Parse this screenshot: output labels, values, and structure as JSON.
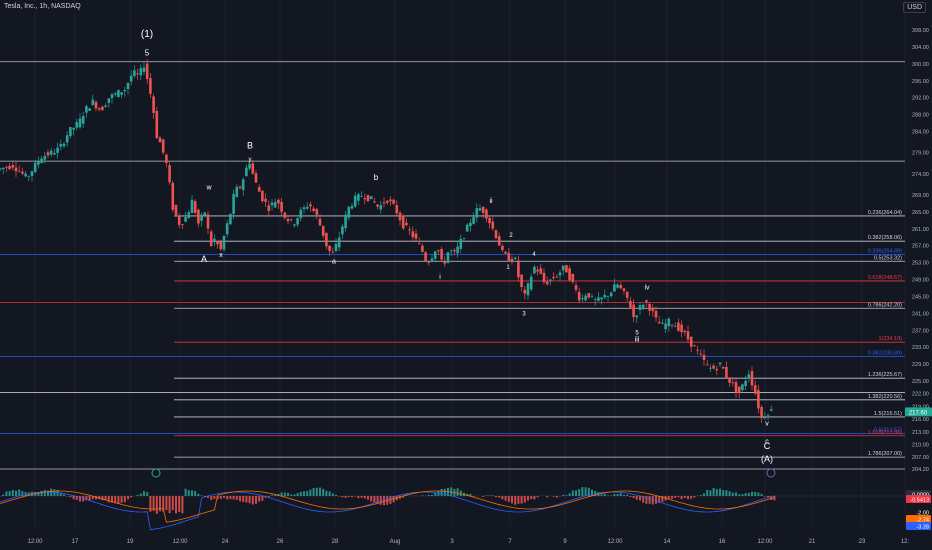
{
  "header": {
    "title": "Tesla, Inc., 1h, NASDAQ",
    "currency": "USD"
  },
  "colors": {
    "background": "#131722",
    "up": "#26a69a",
    "down": "#ef5350",
    "fib_white": "#d1d4dc",
    "fib_blue": "#2962ff",
    "fib_red": "#f23645",
    "macd": "#2962ff",
    "signal": "#ff6d00",
    "price_badge": "#26a69a",
    "current_price_badge": "#22ab94",
    "hist_neg_badge": "#f23645",
    "neg_red_badge": "#f23645"
  },
  "price_axis": {
    "ticks": [
      308.0,
      304.0,
      300.0,
      296.0,
      292.0,
      288.0,
      284.0,
      279.0,
      274.0,
      269.0,
      265.0,
      261.0,
      257.0,
      253.0,
      249.0,
      245.0,
      241.0,
      237.0,
      233.0,
      229.0,
      225.0,
      222.0,
      219.0,
      216.0,
      213.0,
      210.0,
      207.0,
      204.2
    ],
    "current_price": "217.60"
  },
  "time_axis": {
    "labels": [
      "12:00",
      "17",
      "19",
      "12:00",
      "24",
      "26",
      "28",
      "Aug",
      "3",
      "7",
      "9",
      "12:00",
      "14",
      "16",
      "12:00",
      "21",
      "23",
      "12:"
    ]
  },
  "chart_data": {
    "type": "candlestick",
    "symbol": "TSLA",
    "interval": "1h",
    "exchange": "NASDAQ",
    "ylim": [
      202,
      311
    ],
    "path_points": [
      [
        0,
        275
      ],
      [
        16,
        276
      ],
      [
        30,
        273
      ],
      [
        44,
        278
      ],
      [
        55,
        279
      ],
      [
        63,
        280
      ],
      [
        72,
        284
      ],
      [
        82,
        286
      ],
      [
        88,
        289
      ],
      [
        96,
        291
      ],
      [
        104,
        289
      ],
      [
        112,
        292
      ],
      [
        120,
        293
      ],
      [
        128,
        294
      ],
      [
        136,
        298
      ],
      [
        142,
        297
      ],
      [
        147,
        300
      ],
      [
        152,
        295
      ],
      [
        156,
        290
      ],
      [
        160,
        283
      ],
      [
        164,
        281
      ],
      [
        170,
        276
      ],
      [
        176,
        266
      ],
      [
        183,
        262
      ],
      [
        190,
        264
      ],
      [
        196,
        268
      ],
      [
        201,
        262
      ],
      [
        208,
        265
      ],
      [
        214,
        257
      ],
      [
        219,
        259
      ],
      [
        223,
        255
      ],
      [
        228,
        260
      ],
      [
        233,
        264
      ],
      [
        238,
        270
      ],
      [
        244,
        271
      ],
      [
        249,
        275
      ],
      [
        253,
        277
      ],
      [
        257,
        273
      ],
      [
        262,
        270
      ],
      [
        266,
        268
      ],
      [
        272,
        266
      ],
      [
        280,
        268
      ],
      [
        288,
        264
      ],
      [
        296,
        262
      ],
      [
        304,
        265
      ],
      [
        312,
        267
      ],
      [
        320,
        264
      ],
      [
        326,
        260
      ],
      [
        331,
        256
      ],
      [
        336,
        255
      ],
      [
        341,
        258
      ],
      [
        346,
        262
      ],
      [
        352,
        266
      ],
      [
        358,
        268
      ],
      [
        366,
        269
      ],
      [
        374,
        268
      ],
      [
        382,
        266
      ],
      [
        390,
        268
      ],
      [
        398,
        266
      ],
      [
        406,
        262
      ],
      [
        414,
        260
      ],
      [
        420,
        258
      ],
      [
        425,
        256
      ],
      [
        430,
        253
      ],
      [
        434,
        254
      ],
      [
        440,
        257
      ],
      [
        446,
        252
      ],
      [
        452,
        256
      ],
      [
        458,
        255
      ],
      [
        464,
        258
      ],
      [
        470,
        261
      ],
      [
        476,
        264
      ],
      [
        482,
        266
      ],
      [
        488,
        265
      ],
      [
        494,
        262
      ],
      [
        500,
        259
      ],
      [
        506,
        255
      ],
      [
        512,
        254
      ],
      [
        518,
        254
      ],
      [
        523,
        248
      ],
      [
        528,
        245
      ],
      [
        532,
        248
      ],
      [
        537,
        252
      ],
      [
        542,
        251
      ],
      [
        548,
        248
      ],
      [
        554,
        249
      ],
      [
        560,
        250
      ],
      [
        568,
        252
      ],
      [
        576,
        248
      ],
      [
        584,
        244
      ],
      [
        590,
        246
      ],
      [
        596,
        244
      ],
      [
        602,
        244
      ],
      [
        608,
        245
      ],
      [
        614,
        246
      ],
      [
        620,
        248
      ],
      [
        626,
        246
      ],
      [
        632,
        244
      ],
      [
        637,
        240
      ],
      [
        642,
        242
      ],
      [
        648,
        244
      ],
      [
        654,
        242
      ],
      [
        660,
        239
      ],
      [
        666,
        238
      ],
      [
        672,
        239
      ],
      [
        680,
        238
      ],
      [
        688,
        236
      ],
      [
        694,
        234
      ],
      [
        700,
        232
      ],
      [
        706,
        230
      ],
      [
        712,
        228
      ],
      [
        718,
        228
      ],
      [
        724,
        229
      ],
      [
        730,
        226
      ],
      [
        736,
        224
      ],
      [
        742,
        222
      ],
      [
        748,
        225
      ],
      [
        752,
        227
      ],
      [
        756,
        224
      ],
      [
        760,
        221
      ],
      [
        764,
        216
      ],
      [
        768,
        217
      ],
      [
        772,
        218
      ]
    ],
    "fib_levels": [
      {
        "label": "0.236(264.04)",
        "price": 264.04,
        "color": "white",
        "x_start": 174
      },
      {
        "label": "0.382(258.06)",
        "price": 258.06,
        "color": "white",
        "x_start": 174
      },
      {
        "label": "0.236(254.89)",
        "price": 254.89,
        "color": "blue",
        "x_start": 0
      },
      {
        "label": "0.5(253.32)",
        "price": 253.32,
        "color": "white",
        "x_start": 174
      },
      {
        "label": "0.618(248.67)",
        "price": 248.67,
        "color": "red",
        "x_start": 174
      },
      {
        "label": "0.786(242.20)",
        "price": 242.2,
        "color": "white",
        "x_start": 174
      },
      {
        "label": "1(234.19)",
        "price": 234.19,
        "color": "red",
        "x_start": 174
      },
      {
        "label": "0.382(230.80)",
        "price": 230.8,
        "color": "blue",
        "x_start": 0
      },
      {
        "label": "1.236(225.67)",
        "price": 225.67,
        "color": "white",
        "x_start": 174
      },
      {
        "label": "1.382(220.56)",
        "price": 220.56,
        "color": "white",
        "x_start": 174
      },
      {
        "label": "1.5(216.51)",
        "price": 216.51,
        "color": "white",
        "x_start": 174
      },
      {
        "label": "0.5(212.57)",
        "price": 212.57,
        "color": "blue",
        "x_start": 0
      },
      {
        "label": "1.618(212.06)",
        "price": 212.06,
        "color": "red",
        "x_start": 174
      },
      {
        "label": "1.786(207.00)",
        "price": 207.0,
        "color": "white",
        "x_start": 174
      }
    ],
    "horizontal_lines": [
      {
        "price": 300.5,
        "x_start": 0,
        "color": "white"
      },
      {
        "price": 277.0,
        "x_start": 0,
        "color": "white"
      },
      {
        "price": 243.6,
        "x_start": 0,
        "color": "red"
      },
      {
        "price": 222.3,
        "x_start": 0,
        "color": "white"
      },
      {
        "price": 204.2,
        "x_start": 0,
        "color": "white"
      }
    ],
    "wave_labels": [
      {
        "text": "(1)",
        "x": 147,
        "price": 306.3,
        "size": 10
      },
      {
        "text": "5",
        "x": 147,
        "price": 302.0,
        "size": 8
      },
      {
        "text": "B",
        "x": 250,
        "price": 280.0,
        "size": 9
      },
      {
        "text": "y",
        "x": 250,
        "price": 277.0,
        "size": 6
      },
      {
        "text": "w",
        "x": 209,
        "price": 270.3,
        "size": 7
      },
      {
        "text": "A",
        "x": 204,
        "price": 253.2,
        "size": 9
      },
      {
        "text": "x",
        "x": 221,
        "price": 254.3,
        "size": 7
      },
      {
        "text": "b",
        "x": 376,
        "price": 272.5,
        "size": 8
      },
      {
        "text": "a",
        "x": 334,
        "price": 252.8,
        "size": 7
      },
      {
        "text": "ii",
        "x": 491,
        "price": 267.1,
        "size": 7
      },
      {
        "text": "2",
        "x": 511,
        "price": 259.0,
        "size": 6
      },
      {
        "text": "4",
        "x": 534,
        "price": 254.6,
        "size": 6
      },
      {
        "text": "i",
        "x": 440,
        "price": 249.1,
        "size": 7
      },
      {
        "text": "1",
        "x": 508,
        "price": 251.5,
        "size": 6
      },
      {
        "text": "3",
        "x": 524,
        "price": 240.5,
        "size": 6
      },
      {
        "text": "iv",
        "x": 647,
        "price": 246.7,
        "size": 7
      },
      {
        "text": "5",
        "x": 637,
        "price": 236.0,
        "size": 6
      },
      {
        "text": "iii",
        "x": 637,
        "price": 234.4,
        "size": 7
      },
      {
        "text": "v",
        "x": 767,
        "price": 214.5,
        "size": 7
      },
      {
        "text": "c",
        "x": 767,
        "price": 210.2,
        "size": 7
      },
      {
        "text": "C",
        "x": 767,
        "price": 208.9,
        "size": 9
      },
      {
        "text": "(A)",
        "x": 767,
        "price": 205.9,
        "size": 9
      }
    ],
    "macd_badges": [
      "0.0000",
      "-0.5413",
      "-2.00",
      "-2.74",
      "-3.28"
    ]
  }
}
